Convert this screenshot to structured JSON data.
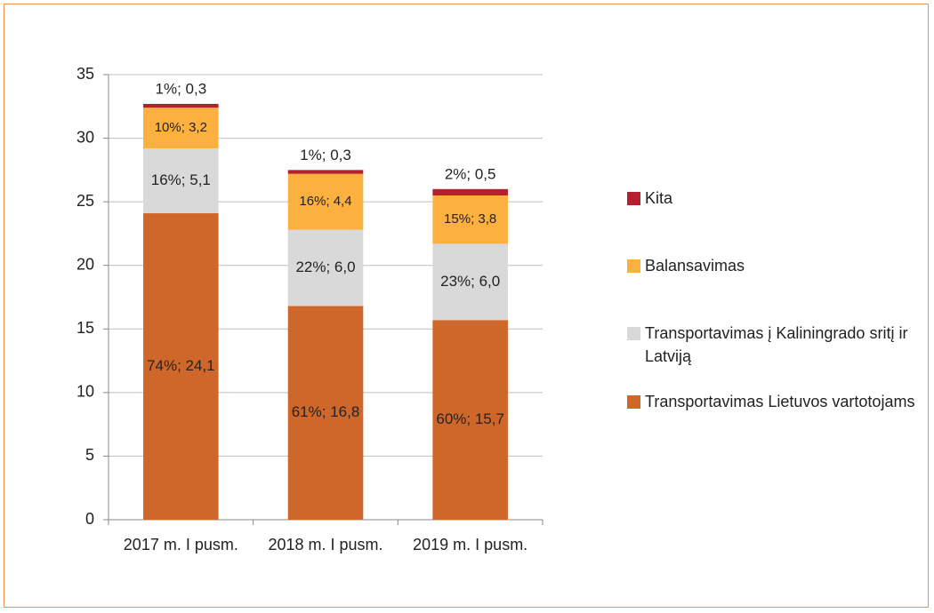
{
  "chart_data": {
    "type": "bar",
    "stacked": true,
    "categories": [
      "2017 m. I pusm.",
      "2018 m. I pusm.",
      "2019 m. I pusm."
    ],
    "series": [
      {
        "name": "Transportavimas Lietuvos vartotojams",
        "color": "#d0672a",
        "values": [
          24.1,
          16.8,
          15.7
        ],
        "value_labels": [
          "74%; 24,1",
          "61%; 16,8",
          "60%; 15,7"
        ]
      },
      {
        "name": "Transportavimas į Kaliningrado sritį ir Latviją",
        "color": "#d9d9d9",
        "values": [
          5.1,
          6.0,
          6.0
        ],
        "value_labels": [
          "16%; 5,1",
          "22%; 6,0",
          "23%; 6,0"
        ]
      },
      {
        "name": "Balansavimas",
        "color": "#fbb040",
        "values": [
          3.2,
          4.4,
          3.8
        ],
        "value_labels": [
          "10%; 3,2",
          "16%; 4,4",
          "15%; 3,8"
        ]
      },
      {
        "name": "Kita",
        "color": "#b5202e",
        "values": [
          0.3,
          0.3,
          0.5
        ],
        "value_labels": [
          "1%; 0,3",
          "1%; 0,3",
          "2%; 0,5"
        ]
      }
    ],
    "ylim": [
      0,
      35
    ],
    "yticks": [
      0,
      5,
      10,
      15,
      20,
      25,
      30,
      35
    ],
    "grid": true,
    "legend": "right"
  }
}
